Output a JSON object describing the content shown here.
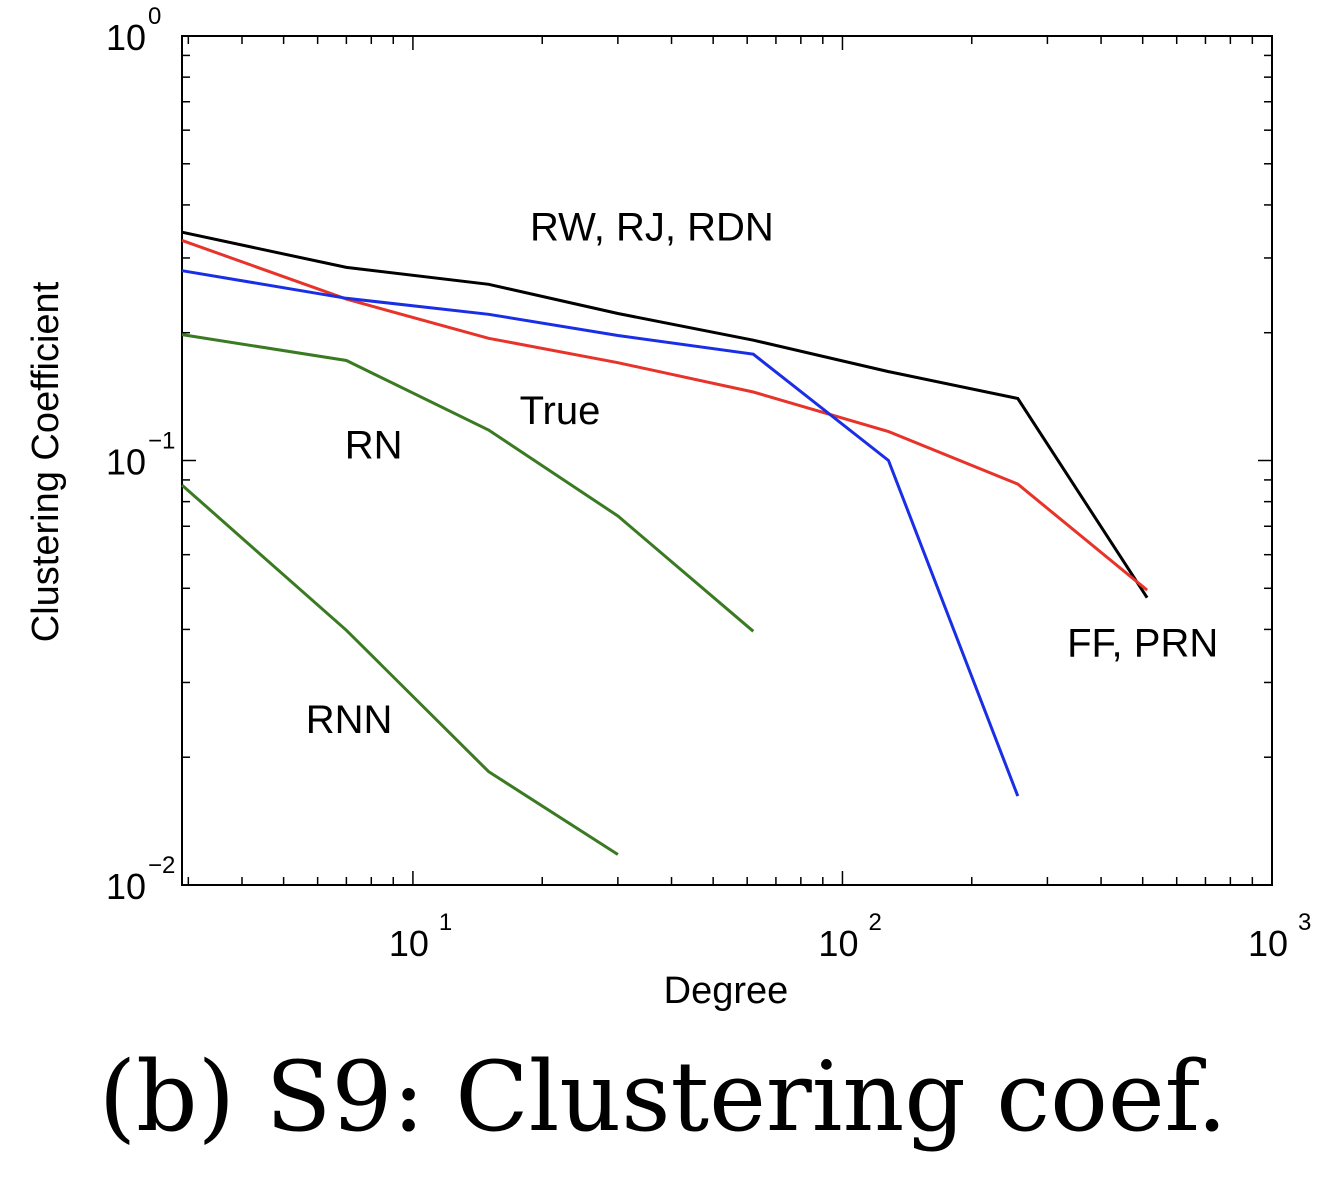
{
  "chart_data": {
    "type": "line",
    "xlabel": "Degree",
    "ylabel": "Clustering Coefficient",
    "xscale": "log",
    "yscale": "log",
    "xlim": [
      2.9,
      1000
    ],
    "ylim": [
      0.01,
      1
    ],
    "grid": false,
    "x_ticks": [
      {
        "value": 10,
        "base": "10",
        "exp": "1"
      },
      {
        "value": 100,
        "base": "10",
        "exp": "2"
      },
      {
        "value": 1000,
        "base": "10",
        "exp": "3"
      }
    ],
    "y_ticks": [
      {
        "value": 1,
        "base": "10",
        "exp": "0"
      },
      {
        "value": 0.1,
        "base": "10",
        "exp": "−1"
      },
      {
        "value": 0.01,
        "base": "10",
        "exp": "−2"
      }
    ],
    "series": [
      {
        "color": "#000000",
        "x": [
          2.9,
          7,
          15,
          30,
          62,
          128,
          256,
          512
        ],
        "y": [
          0.345,
          0.285,
          0.26,
          0.222,
          0.192,
          0.162,
          0.14,
          0.0475
        ]
      },
      {
        "color": "#e8332a",
        "x": [
          2.9,
          7,
          15,
          30,
          62,
          128,
          256,
          512
        ],
        "y": [
          0.33,
          0.24,
          0.194,
          0.17,
          0.145,
          0.117,
          0.088,
          0.0495
        ]
      },
      {
        "color": "#1a2ee6",
        "x": [
          2.9,
          7,
          15,
          30,
          62,
          128,
          256
        ],
        "y": [
          0.28,
          0.241,
          0.221,
          0.197,
          0.178,
          0.1,
          0.0162
        ]
      },
      {
        "color": "#3a7a22",
        "x": [
          2.9,
          7,
          15,
          30,
          62
        ],
        "y": [
          0.198,
          0.172,
          0.118,
          0.074,
          0.0396
        ]
      },
      {
        "color": "#3a7a22",
        "x": [
          2.9,
          7,
          15,
          30
        ],
        "y": [
          0.0875,
          0.0398,
          0.0185,
          0.0118
        ]
      }
    ],
    "annotations": [
      {
        "text": "RW, RJ, RDN",
        "x": 36,
        "y": 0.33
      },
      {
        "text": "True",
        "x": 22,
        "y": 0.122
      },
      {
        "text": "RN",
        "x": 8.1,
        "y": 0.101
      },
      {
        "text": "FF, PRN",
        "x": 500,
        "y": 0.0345
      },
      {
        "text": "RNN",
        "x": 7.1,
        "y": 0.0228
      }
    ]
  },
  "caption": "(b) S9:  Clustering coef."
}
